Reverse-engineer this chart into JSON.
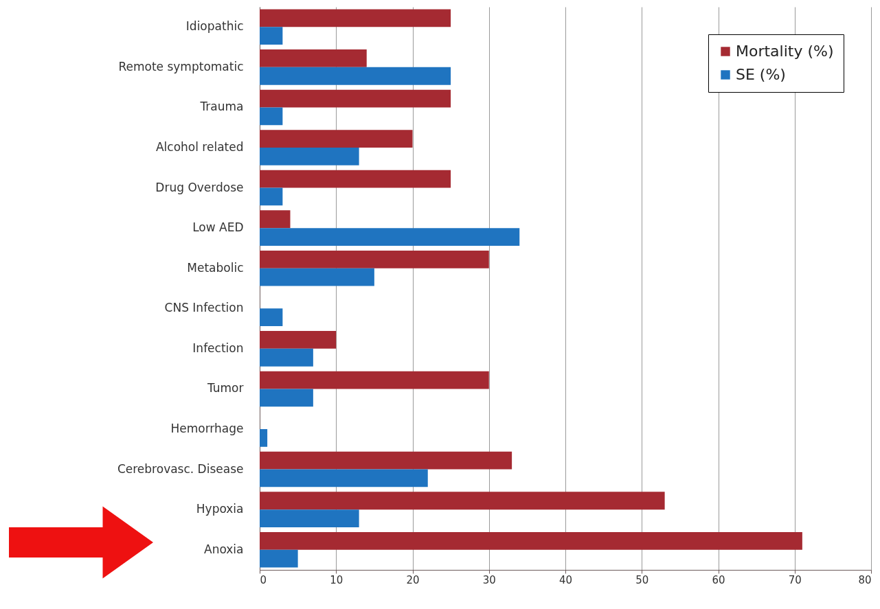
{
  "chart_data": {
    "type": "bar",
    "orientation": "horizontal",
    "categories": [
      "Idiopathic",
      "Remote symptomatic",
      "Trauma",
      "Alcohol related",
      "Drug Overdose",
      "Low AED",
      "Metabolic",
      "CNS Infection",
      "Infection",
      "Tumor",
      "Hemorrhage",
      "Cerebrovasc. Disease",
      "Hypoxia",
      "Anoxia"
    ],
    "series": [
      {
        "name": "Mortality (%)",
        "color": "#a52a32",
        "values": [
          25,
          14,
          25,
          20,
          25,
          4,
          30,
          null,
          10,
          30,
          null,
          33,
          53,
          71
        ]
      },
      {
        "name": "SE (%)",
        "color": "#1f74c0",
        "values": [
          3,
          25,
          3,
          13,
          3,
          34,
          15,
          3,
          7,
          7,
          1,
          22,
          13,
          5
        ]
      }
    ],
    "xlim": [
      0,
      80
    ],
    "xticks": [
      0,
      10,
      20,
      30,
      40,
      50,
      60,
      70,
      80
    ],
    "grid": "x",
    "legend": "top right"
  }
}
